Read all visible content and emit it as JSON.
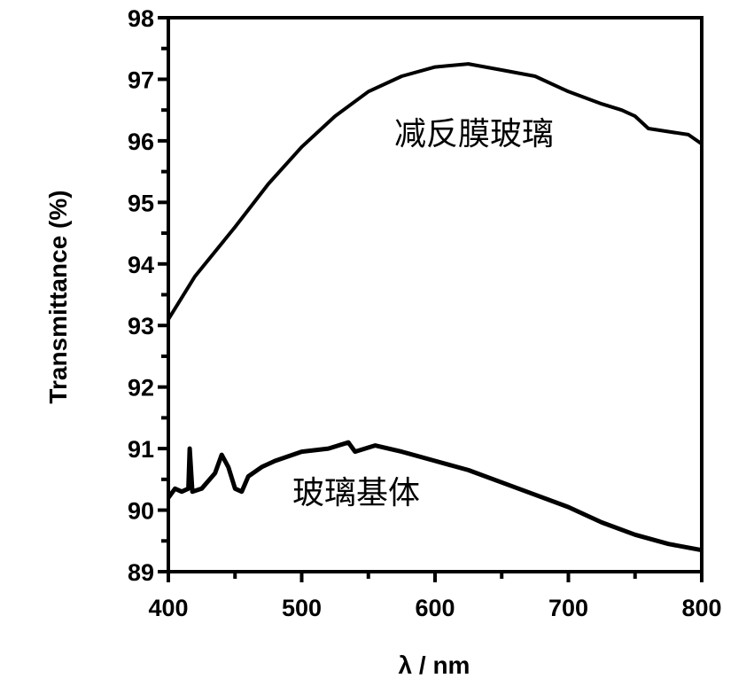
{
  "chart_data": {
    "type": "line",
    "title": "",
    "xlabel": "λ / nm",
    "ylabel": "Transmittance (%)",
    "xlim": [
      400,
      800
    ],
    "ylim": [
      89,
      98
    ],
    "xticks": [
      "400",
      "500",
      "600",
      "700",
      "800"
    ],
    "yticks": [
      "89",
      "90",
      "91",
      "92",
      "93",
      "94",
      "95",
      "96",
      "97",
      "98"
    ],
    "grid": false,
    "legend": "none",
    "series": [
      {
        "name": "减反膜玻璃",
        "x": [
          400,
          420,
          450,
          475,
          500,
          525,
          550,
          575,
          600,
          625,
          650,
          675,
          700,
          725,
          740,
          750,
          760,
          775,
          790,
          800
        ],
        "y": [
          93.1,
          93.8,
          94.6,
          95.3,
          95.9,
          96.4,
          96.8,
          97.05,
          97.2,
          97.25,
          97.15,
          97.05,
          96.8,
          96.6,
          96.5,
          96.4,
          96.2,
          96.15,
          96.1,
          95.95
        ]
      },
      {
        "name": "玻璃基体",
        "x": [
          400,
          405,
          410,
          415,
          416,
          418,
          425,
          435,
          440,
          445,
          450,
          455,
          460,
          470,
          480,
          500,
          520,
          535,
          540,
          555,
          575,
          600,
          625,
          650,
          675,
          700,
          725,
          750,
          775,
          800
        ],
        "y": [
          90.2,
          90.35,
          90.3,
          90.35,
          91.0,
          90.3,
          90.35,
          90.6,
          90.9,
          90.7,
          90.35,
          90.3,
          90.55,
          90.7,
          90.8,
          90.95,
          91.0,
          91.1,
          90.95,
          91.05,
          90.95,
          90.8,
          90.65,
          90.45,
          90.25,
          90.05,
          89.8,
          89.6,
          89.45,
          89.35
        ]
      }
    ],
    "annotations": [
      "减反膜玻璃",
      "玻璃基体"
    ]
  }
}
